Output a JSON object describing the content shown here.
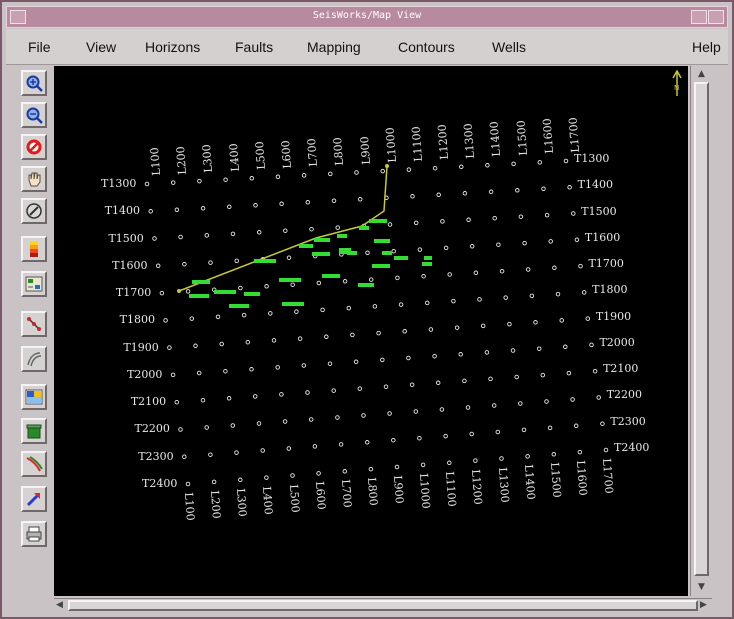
{
  "window": {
    "title": "SeisWorks/Map View"
  },
  "menu": {
    "file": "File",
    "view": "View",
    "horizons": "Horizons",
    "faults": "Faults",
    "mapping": "Mapping",
    "contours": "Contours",
    "wells": "Wells",
    "help": "Help"
  },
  "toolbar": {
    "tools": [
      {
        "name": "zoom-in-icon"
      },
      {
        "name": "zoom-out-icon"
      },
      {
        "name": "cancel-icon"
      },
      {
        "name": "pan-hand-icon"
      },
      {
        "name": "compass-icon"
      },
      {
        "name": "colorbar-icon"
      },
      {
        "name": "map-legend-icon"
      },
      {
        "name": "fault-segment-icon"
      },
      {
        "name": "fault-polygon-icon"
      },
      {
        "name": "contour-palette-icon"
      },
      {
        "name": "trash-icon"
      },
      {
        "name": "fault-trace-icon"
      },
      {
        "name": "pick-arrow-icon"
      },
      {
        "name": "print-icon"
      }
    ]
  },
  "map": {
    "inlines_top": [
      "L100",
      "L200",
      "L300",
      "L400",
      "L500",
      "L600",
      "L700",
      "L800",
      "L900",
      "L1000",
      "L1100",
      "L1200",
      "L1300",
      "L1400",
      "L1500",
      "L1600",
      "L1700"
    ],
    "inlines_bottom": [
      "L100",
      "L200",
      "L300",
      "L400",
      "L500",
      "L600",
      "L700",
      "L800",
      "L900",
      "L1000",
      "L1100",
      "L1200",
      "L1300",
      "L1400",
      "L1500",
      "L1600",
      "L1700"
    ],
    "traces_left": [
      "T1300",
      "T1400",
      "T1500",
      "T1600",
      "T1700",
      "T1800",
      "T1900",
      "T2000",
      "T2100",
      "T2200",
      "T2300",
      "T2400"
    ],
    "traces_right": [
      "T1300",
      "T1400",
      "T1500",
      "T1600",
      "T1700",
      "T1800",
      "T1900",
      "T2000",
      "T2100",
      "T2200",
      "T2300",
      "T2400"
    ],
    "colors": {
      "background": "#000000",
      "grid": "#e8e8e8",
      "fault": "#c8c832",
      "picks": "#33dd33"
    }
  }
}
